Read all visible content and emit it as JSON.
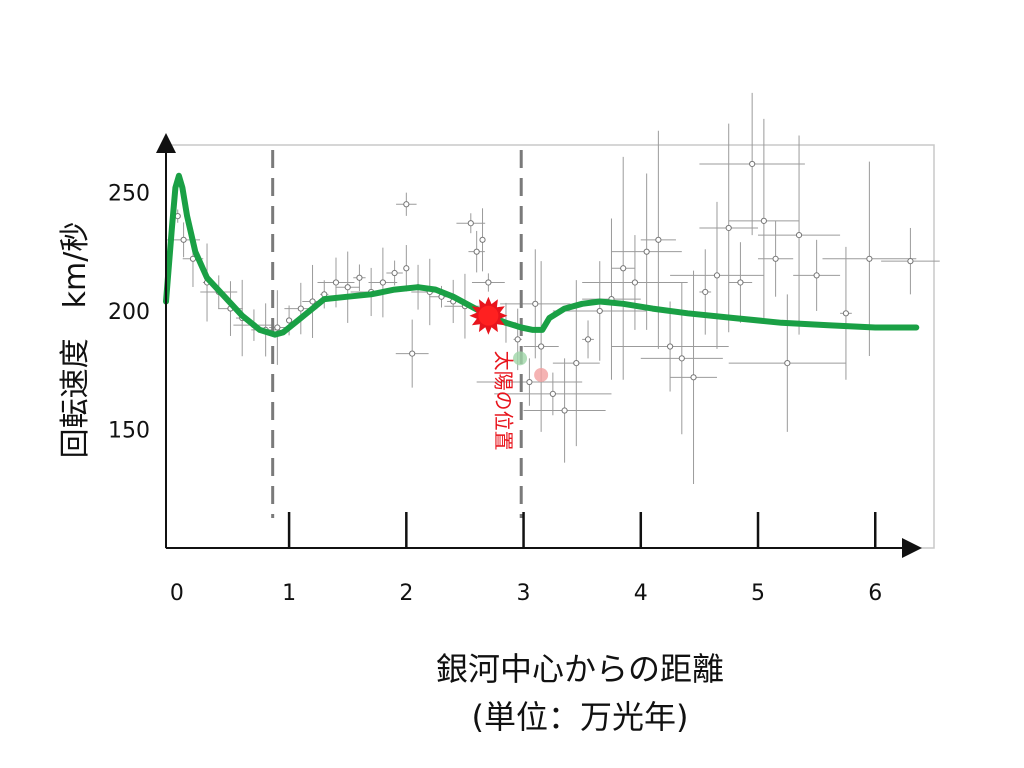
{
  "chart_data": {
    "type": "line",
    "x_ticks": [
      "0",
      "1",
      "2",
      "3",
      "4",
      "5",
      "6"
    ],
    "y_ticks": [
      "150",
      "200",
      "250"
    ],
    "xlim": [
      -0.05,
      6.45
    ],
    "ylim": [
      100,
      270
    ],
    "ylabel": "回転速度　km/秒",
    "xlabel": "銀河中心からの距離",
    "xlabel_unit": "(単位：万光年)",
    "reference_lines_x": [
      0.86,
      2.98
    ],
    "annotation": {
      "label": "太陽の位置",
      "x": 2.7,
      "y": 198,
      "color": "#e8141c"
    },
    "series": [
      {
        "color": "#1aa045",
        "x": [
          -0.05,
          0.0,
          0.03,
          0.06,
          0.09,
          0.13,
          0.2,
          0.3,
          0.45,
          0.6,
          0.75,
          0.88,
          0.95,
          1.05,
          1.15,
          1.3,
          1.5,
          1.7,
          1.9,
          2.1,
          2.25,
          2.4,
          2.55,
          2.7,
          2.85,
          2.98,
          3.08,
          3.16,
          3.22,
          3.35,
          3.5,
          3.65,
          3.85,
          4.1,
          4.4,
          4.8,
          5.2,
          5.6,
          6.0,
          6.35
        ],
        "y": [
          204,
          235,
          252,
          257,
          252,
          240,
          225,
          214,
          206,
          198,
          192,
          190,
          191,
          195,
          199,
          205,
          206,
          207,
          209,
          210,
          209,
          206,
          202,
          198,
          195,
          193,
          192,
          192,
          197,
          201,
          203,
          204,
          203,
          201,
          199,
          197,
          195,
          194,
          193,
          193
        ]
      }
    ],
    "grey_points": [
      {
        "x": 0.05,
        "y": 240
      },
      {
        "x": 0.1,
        "y": 230
      },
      {
        "x": 0.18,
        "y": 222
      },
      {
        "x": 0.3,
        "y": 212
      },
      {
        "x": 0.4,
        "y": 208
      },
      {
        "x": 0.5,
        "y": 201
      },
      {
        "x": 0.6,
        "y": 197
      },
      {
        "x": 0.7,
        "y": 194
      },
      {
        "x": 0.8,
        "y": 192
      },
      {
        "x": 0.9,
        "y": 193
      },
      {
        "x": 1.0,
        "y": 196
      },
      {
        "x": 1.1,
        "y": 201
      },
      {
        "x": 1.2,
        "y": 204
      },
      {
        "x": 1.3,
        "y": 207
      },
      {
        "x": 1.4,
        "y": 212
      },
      {
        "x": 1.5,
        "y": 210
      },
      {
        "x": 1.6,
        "y": 214
      },
      {
        "x": 1.7,
        "y": 208
      },
      {
        "x": 1.8,
        "y": 212
      },
      {
        "x": 1.9,
        "y": 216
      },
      {
        "x": 2.0,
        "y": 218
      },
      {
        "x": 2.05,
        "y": 182
      },
      {
        "x": 2.0,
        "y": 245
      },
      {
        "x": 2.1,
        "y": 210
      },
      {
        "x": 2.2,
        "y": 208
      },
      {
        "x": 2.3,
        "y": 206
      },
      {
        "x": 2.4,
        "y": 204
      },
      {
        "x": 2.5,
        "y": 202
      },
      {
        "x": 2.55,
        "y": 237
      },
      {
        "x": 2.6,
        "y": 225
      },
      {
        "x": 2.65,
        "y": 230
      },
      {
        "x": 2.7,
        "y": 212
      },
      {
        "x": 2.85,
        "y": 195
      },
      {
        "x": 2.95,
        "y": 188
      },
      {
        "x": 3.05,
        "y": 170
      },
      {
        "x": 3.1,
        "y": 203
      },
      {
        "x": 3.15,
        "y": 185
      },
      {
        "x": 3.25,
        "y": 165
      },
      {
        "x": 3.35,
        "y": 158
      },
      {
        "x": 3.45,
        "y": 178
      },
      {
        "x": 3.55,
        "y": 188
      },
      {
        "x": 3.65,
        "y": 200
      },
      {
        "x": 3.75,
        "y": 205
      },
      {
        "x": 3.85,
        "y": 218
      },
      {
        "x": 3.95,
        "y": 212
      },
      {
        "x": 4.05,
        "y": 225
      },
      {
        "x": 4.15,
        "y": 230
      },
      {
        "x": 4.25,
        "y": 185
      },
      {
        "x": 4.35,
        "y": 180
      },
      {
        "x": 4.45,
        "y": 172
      },
      {
        "x": 4.55,
        "y": 208
      },
      {
        "x": 4.65,
        "y": 215
      },
      {
        "x": 4.75,
        "y": 235
      },
      {
        "x": 4.85,
        "y": 212
      },
      {
        "x": 4.95,
        "y": 262
      },
      {
        "x": 5.05,
        "y": 238
      },
      {
        "x": 5.15,
        "y": 222
      },
      {
        "x": 5.25,
        "y": 178
      },
      {
        "x": 5.35,
        "y": 232
      },
      {
        "x": 5.5,
        "y": 215
      },
      {
        "x": 5.75,
        "y": 199
      },
      {
        "x": 5.95,
        "y": 222
      },
      {
        "x": 6.3,
        "y": 221
      }
    ]
  }
}
